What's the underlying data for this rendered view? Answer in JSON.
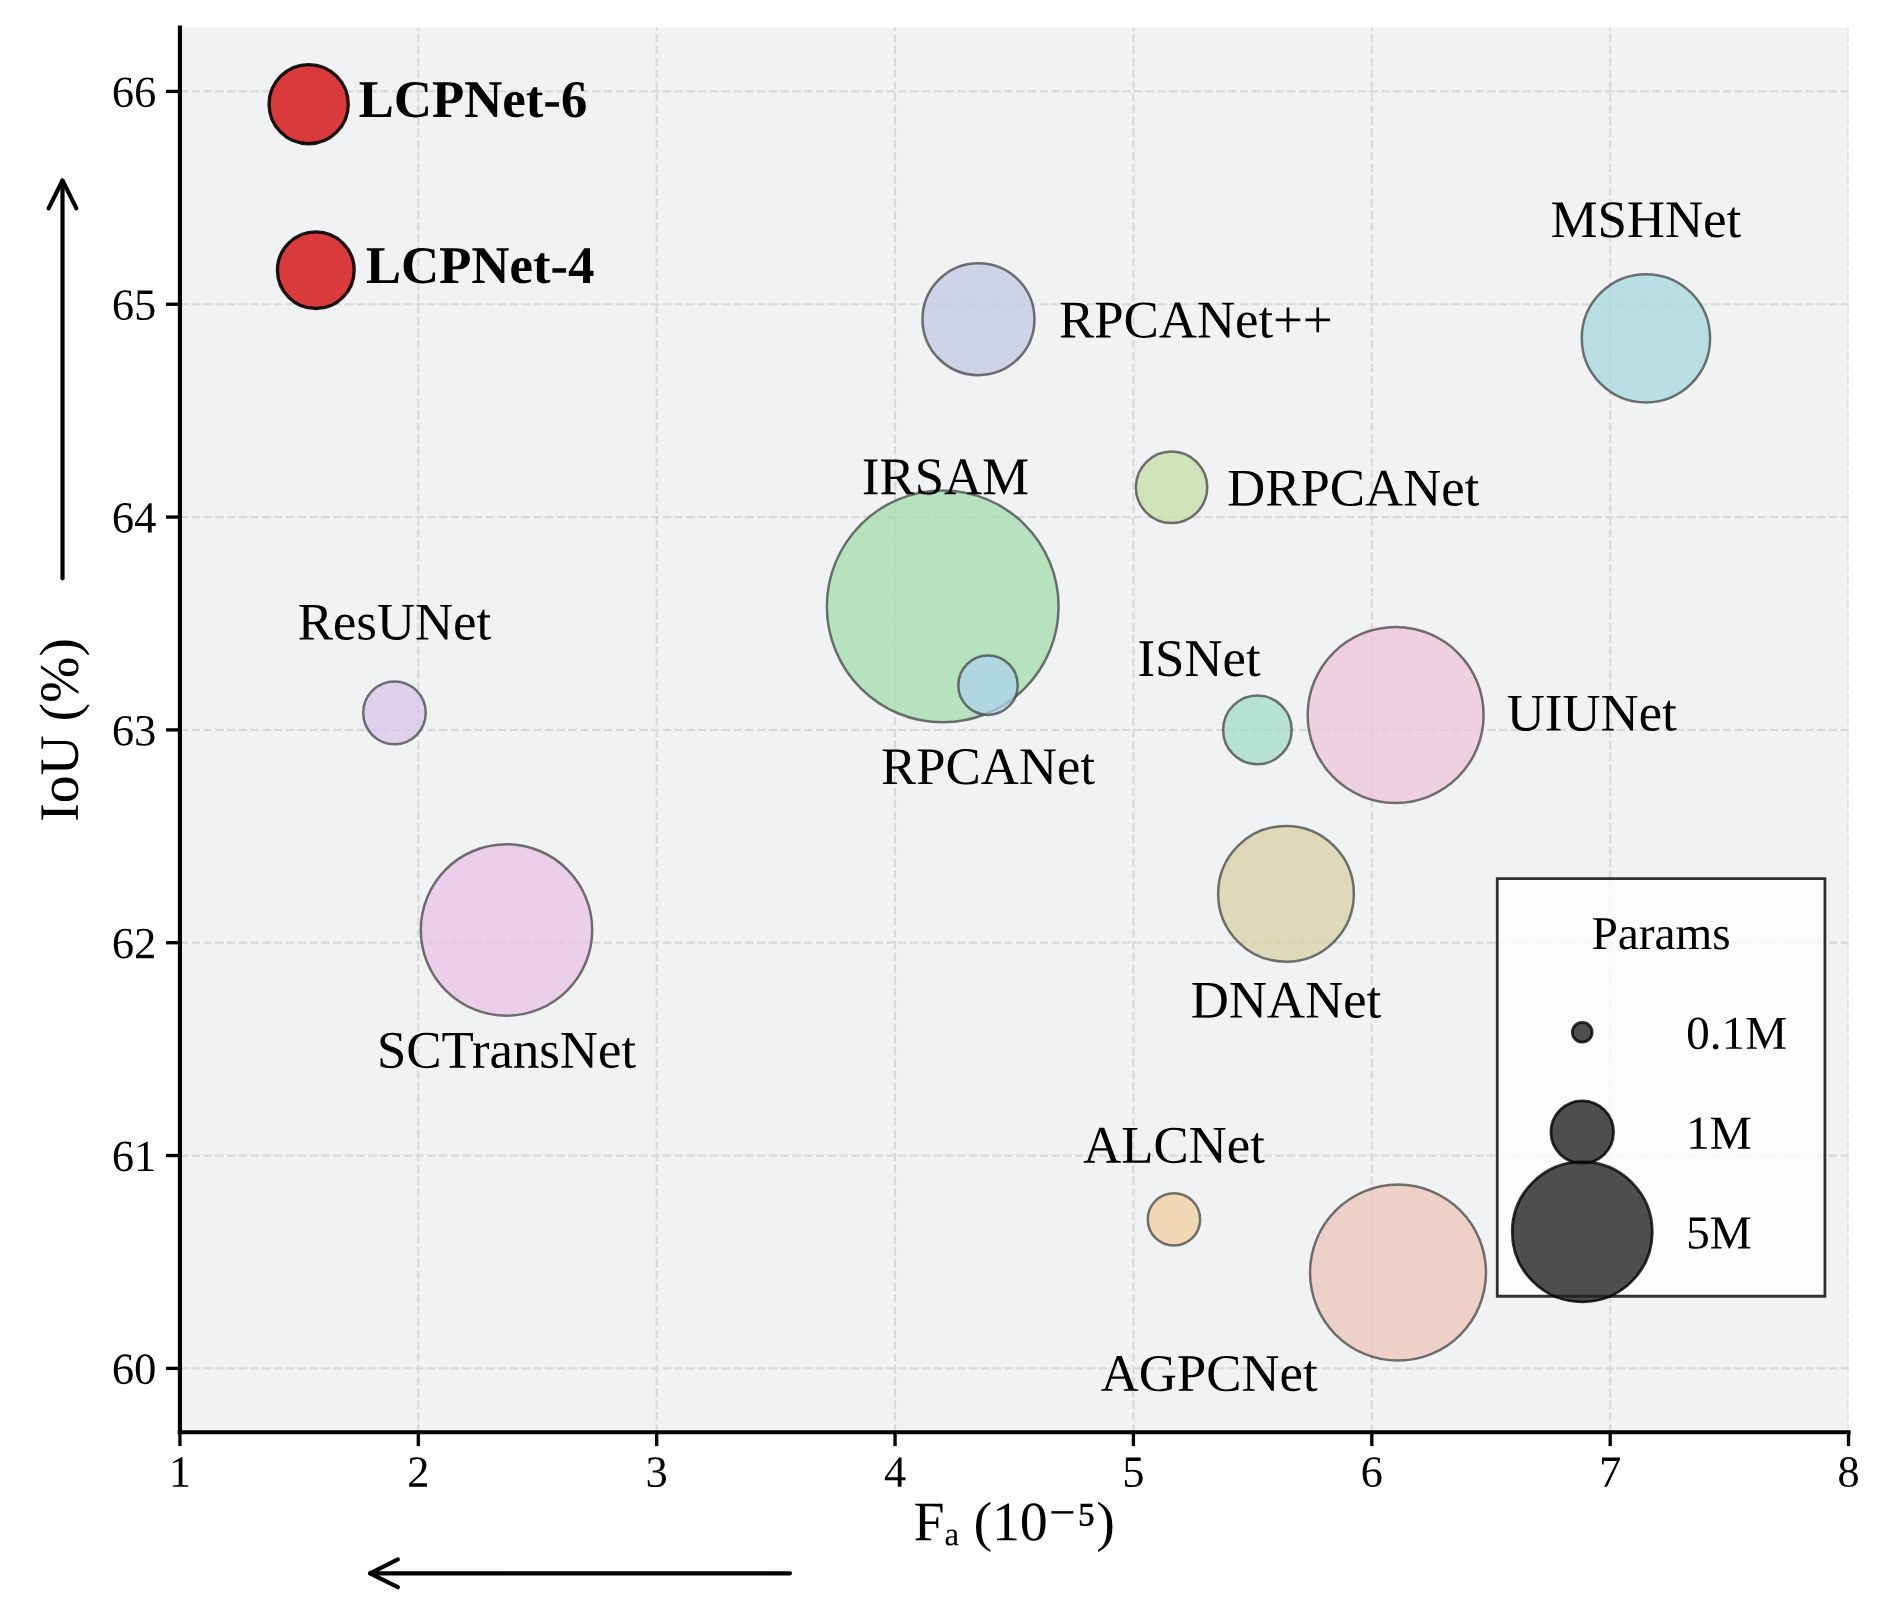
{
  "chart_data": {
    "type": "bubble",
    "xlabel": "Fₐ (10⁻⁵)",
    "ylabel": "IoU (%)",
    "legend_title": "Params",
    "xlim": [
      1,
      8
    ],
    "xticks": [
      1,
      2,
      3,
      4,
      5,
      6,
      7,
      8
    ],
    "ylim": [
      59.7,
      66.3
    ],
    "yticks": [
      60,
      61,
      62,
      63,
      64,
      65,
      66
    ],
    "grid": true,
    "legend": "bottom right",
    "size_legend": [
      {
        "value": 0.1,
        "label": "0.1M"
      },
      {
        "value": 1,
        "label": "1M"
      },
      {
        "value": 5,
        "label": "5M"
      }
    ],
    "series": [
      {
        "name": "LCPNet-6",
        "color": "#d62728",
        "x": [
          1.54
        ],
        "values": [
          65.94
        ],
        "sizes": [
          1.6
        ]
      },
      {
        "name": "LCPNet-4",
        "color": "#d62728",
        "x": [
          1.57
        ],
        "values": [
          65.16
        ],
        "sizes": [
          1.5
        ]
      },
      {
        "name": "RPCANet++",
        "color": "#c1c8e4",
        "x": [
          4.35
        ],
        "values": [
          64.93
        ],
        "sizes": [
          3.2
        ]
      },
      {
        "name": "MSHNet",
        "color": "#a6d8e0",
        "x": [
          7.15
        ],
        "values": [
          64.84
        ],
        "sizes": [
          4.2
        ]
      },
      {
        "name": "DRPCANet",
        "color": "#c5dfa6",
        "x": [
          5.16
        ],
        "values": [
          64.14
        ],
        "sizes": [
          1.3
        ]
      },
      {
        "name": "IRSAM",
        "color": "#a3dcac",
        "x": [
          4.2
        ],
        "values": [
          63.58
        ],
        "sizes": [
          13.7
        ]
      },
      {
        "name": "RPCANet",
        "color": "#aed1ea",
        "x": [
          4.39
        ],
        "values": [
          63.21
        ],
        "sizes": [
          0.9
        ]
      },
      {
        "name": "ResUNet",
        "color": "#d6c6ea",
        "x": [
          1.9
        ],
        "values": [
          63.08
        ],
        "sizes": [
          1.0
        ]
      },
      {
        "name": "ISNet",
        "color": "#a2dbc8",
        "x": [
          5.52
        ],
        "values": [
          63.0
        ],
        "sizes": [
          1.2
        ]
      },
      {
        "name": "UIUNet",
        "color": "#ecc4d9",
        "x": [
          6.1
        ],
        "values": [
          63.07
        ],
        "sizes": [
          7.9
        ]
      },
      {
        "name": "SCTransNet",
        "color": "#e8c1e5",
        "x": [
          2.37
        ],
        "values": [
          62.06
        ],
        "sizes": [
          7.5
        ]
      },
      {
        "name": "DNANet",
        "color": "#d6d0a6",
        "x": [
          5.64
        ],
        "values": [
          62.23
        ],
        "sizes": [
          4.7
        ]
      },
      {
        "name": "ALCNet",
        "color": "#efcfa0",
        "x": [
          5.17
        ],
        "values": [
          60.7
        ],
        "sizes": [
          0.7
        ]
      },
      {
        "name": "AGPCNet",
        "color": "#ebc6ba",
        "x": [
          6.11
        ],
        "values": [
          60.45
        ],
        "sizes": [
          7.9
        ]
      }
    ]
  }
}
